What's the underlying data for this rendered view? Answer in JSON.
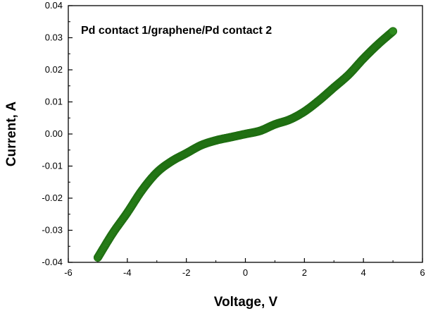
{
  "chart_data": {
    "type": "scatter",
    "title": "",
    "annotation": "Pd contact 1/graphene/Pd contact 2",
    "xlabel": "Voltage, V",
    "ylabel": "Current, A",
    "xlim": [
      -6,
      6
    ],
    "ylim": [
      -0.04,
      0.04
    ],
    "xticks": [
      "-6",
      "-4",
      "-2",
      "0",
      "2",
      "4",
      "6"
    ],
    "yticks": [
      "-0.04",
      "-0.03",
      "-0.02",
      "-0.01",
      "0.00",
      "0.01",
      "0.02",
      "0.03",
      "0.04"
    ],
    "grid": false,
    "legend": "none",
    "colors": {
      "marker_fill": "#2e8b1e",
      "marker_stroke": "#1f6e12"
    },
    "series": [
      {
        "x": [
          -5.0,
          -4.5,
          -4.0,
          -3.5,
          -3.0,
          -2.5,
          -2.0,
          -1.5,
          -1.0,
          -0.5,
          0.0,
          0.5,
          1.0,
          1.5,
          2.0,
          2.5,
          3.0,
          3.5,
          4.0,
          4.5,
          5.0
        ],
        "y": [
          -0.0385,
          -0.031,
          -0.0245,
          -0.0175,
          -0.012,
          -0.0085,
          -0.006,
          -0.0035,
          -0.002,
          -0.001,
          0.0,
          0.001,
          0.003,
          0.0045,
          0.007,
          0.0105,
          0.0145,
          0.0185,
          0.0235,
          0.028,
          0.032
        ]
      }
    ]
  }
}
